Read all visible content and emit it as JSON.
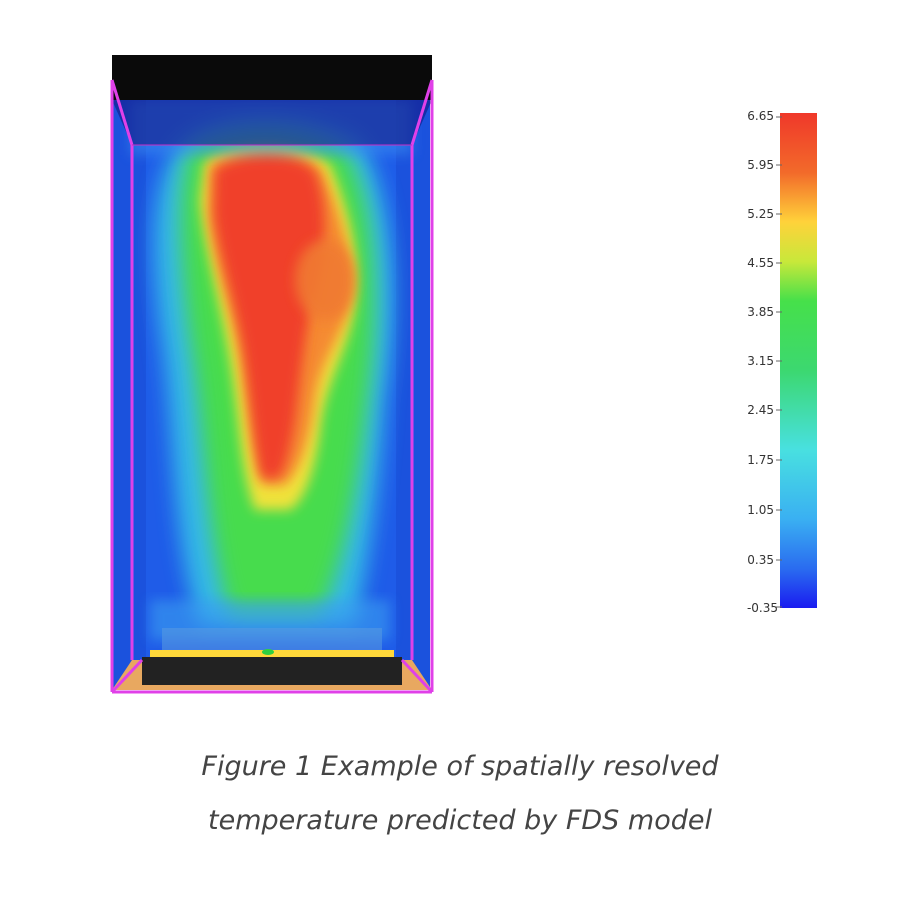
{
  "figure": {
    "caption_line1": "Figure 1 Example of spatially resolved",
    "caption_line2": "temperature predicted by FDS model"
  },
  "colorbar": {
    "ticks": [
      "6.65",
      "5.95",
      "5.25",
      "4.55",
      "3.85",
      "3.15",
      "2.45",
      "1.75",
      "1.05",
      "0.35",
      "-0.35"
    ],
    "colors": [
      "#f0382a",
      "#f26a2a",
      "#ffd23a",
      "#c8e83a",
      "#46e04a",
      "#38dc5a",
      "#3cd89a",
      "#48e0e0",
      "#3ab0f2",
      "#2a6cf0",
      "#1a1cf0"
    ]
  },
  "colors": {
    "frame_edge": "#e040e8",
    "ceiling": "#0a0a0a",
    "floor": "#e8a860",
    "burner": "#222222",
    "burner_top": "#ffd83a"
  }
}
